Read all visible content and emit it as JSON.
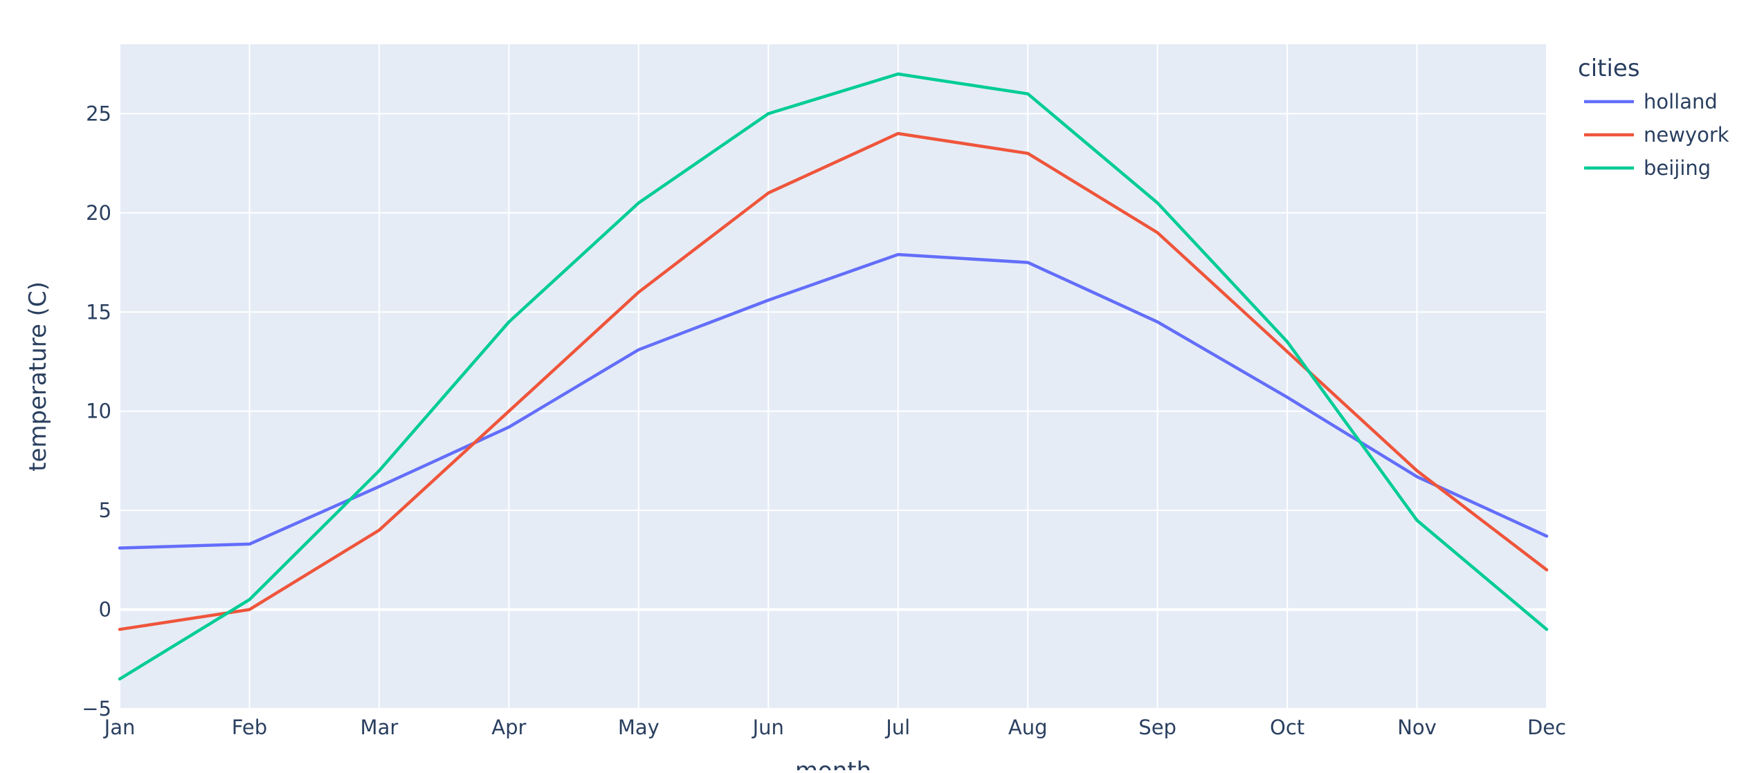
{
  "chart_data": {
    "type": "line",
    "xlabel": "month",
    "ylabel": "temperature (C)",
    "categories": [
      "Jan",
      "Feb",
      "Mar",
      "Apr",
      "May",
      "Jun",
      "Jul",
      "Aug",
      "Sep",
      "Oct",
      "Nov",
      "Dec"
    ],
    "ylim": [
      -5,
      28.5
    ],
    "yticks": [
      -5,
      0,
      5,
      10,
      15,
      20,
      25
    ],
    "ytick_labels": [
      "−5",
      "0",
      "5",
      "10",
      "15",
      "20",
      "25"
    ],
    "grid": true,
    "legend": {
      "title": "cities",
      "placement": "top-right"
    },
    "series": [
      {
        "name": "holland",
        "color": "#636efa",
        "values": [
          3.1,
          3.3,
          6.2,
          9.2,
          13.1,
          15.6,
          17.9,
          17.5,
          14.5,
          10.7,
          6.7,
          3.7
        ]
      },
      {
        "name": "newyork",
        "color": "#ef553b",
        "values": [
          -1.0,
          0.0,
          4.0,
          10.0,
          16.0,
          21.0,
          24.0,
          23.0,
          19.0,
          13.0,
          7.0,
          2.0
        ]
      },
      {
        "name": "beijing",
        "color": "#00cc96",
        "values": [
          -3.5,
          0.5,
          7.0,
          14.5,
          20.5,
          25.0,
          27.0,
          26.0,
          20.5,
          13.5,
          4.5,
          -1.0
        ]
      }
    ]
  },
  "colors": {
    "plot_background": "#e5ecf6",
    "grid": "#ffffff",
    "text": "#2a3f5f"
  }
}
